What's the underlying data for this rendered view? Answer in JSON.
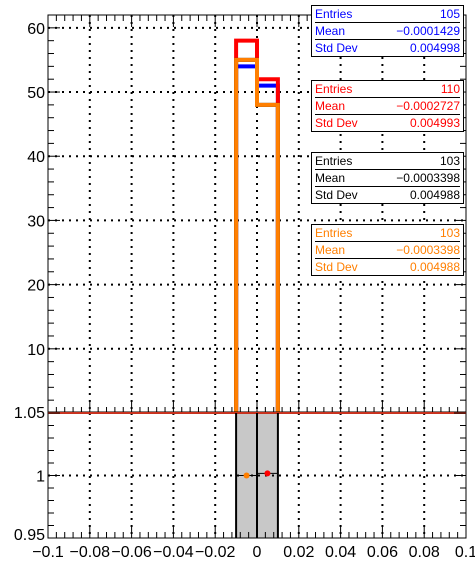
{
  "chart_data": {
    "type": "bar",
    "title": "",
    "xlabel": "",
    "ylabel": "",
    "grid": true,
    "xlim": [
      -0.1,
      0.1
    ],
    "ylim": [
      0,
      62
    ],
    "bin_edges": [
      -0.01,
      0.0,
      0.01
    ],
    "x_tick_labels": [
      "−0.1",
      "−0.08",
      "−0.06",
      "−0.04",
      "−0.02",
      "0",
      "0.02",
      "0.04",
      "0.06",
      "0.08",
      "0.1"
    ],
    "y_tick_labels": [
      "10",
      "20",
      "30",
      "40",
      "50",
      "60"
    ],
    "series": [
      {
        "color": "#0000ff",
        "values": [
          54,
          51
        ],
        "stats": {
          "entries": "105",
          "mean": "−0.0001429",
          "std_dev": "0.004998"
        }
      },
      {
        "color": "#ff0000",
        "values": [
          58,
          52
        ],
        "stats": {
          "entries": "110",
          "mean": "−0.0002727",
          "std_dev": "0.004993"
        }
      },
      {
        "color": "#000000",
        "values": [
          55,
          48
        ],
        "stats": {
          "entries": "103",
          "mean": "−0.0003398",
          "std_dev": "0.004988"
        }
      },
      {
        "color": "#ff7f00",
        "values": [
          55,
          48
        ],
        "stats": {
          "entries": "103",
          "mean": "−0.0003398",
          "std_dev": "0.004988"
        }
      }
    ],
    "stat_labels": {
      "entries": "Entries",
      "mean": "Mean",
      "std_dev": "Std Dev"
    },
    "ratio_panel": {
      "ylim": [
        0.95,
        1.05
      ],
      "y_tick_labels": [
        "1.05",
        "1",
        "0.95"
      ],
      "band": {
        "x": [
          -0.01,
          0.01
        ],
        "color": "#c8c8c8"
      },
      "points": [
        {
          "x": -0.005,
          "y": 1.0,
          "xerr": 0.005,
          "color": "#ff7f00"
        },
        {
          "x": 0.005,
          "y": 1.0017,
          "xerr": 0.005,
          "color": "#ff0000"
        }
      ]
    }
  }
}
